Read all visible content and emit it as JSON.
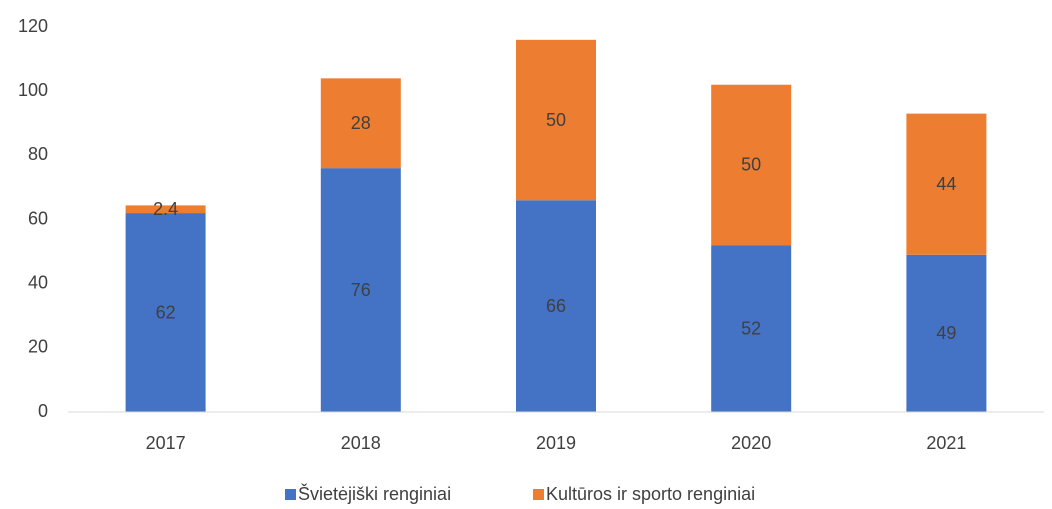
{
  "chart_data": {
    "type": "stacked_bar",
    "categories": [
      "2017",
      "2018",
      "2019",
      "2020",
      "2021"
    ],
    "series": [
      {
        "name": "Švietėjiški renginiai",
        "color": "#4472c4",
        "values": [
          62,
          76,
          66,
          52,
          49
        ]
      },
      {
        "name": "Kultūros ir sporto renginiai",
        "color": "#ed7d31",
        "values": [
          2.4,
          28,
          50,
          50,
          44
        ]
      }
    ],
    "ylim": [
      0,
      120
    ],
    "yticks": [
      0,
      20,
      40,
      60,
      80,
      100,
      120
    ],
    "grid": false,
    "legend": "bottom"
  }
}
